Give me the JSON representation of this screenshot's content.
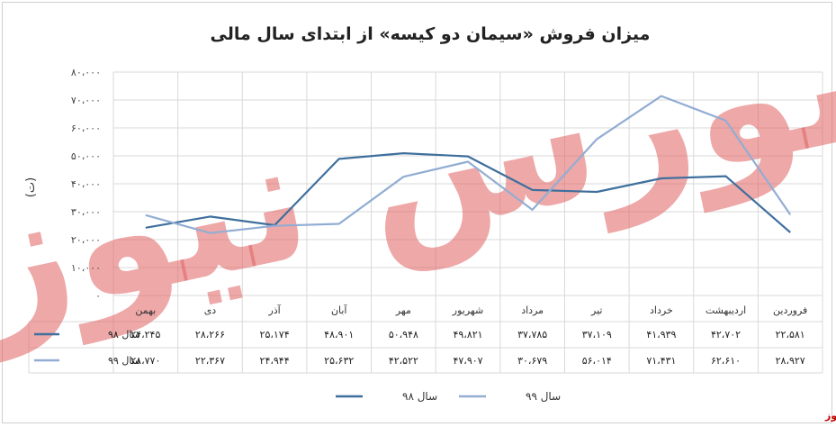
{
  "chart_data": {
    "type": "line",
    "title": "میزان فروش «سیمان دو کیسه» از ابتدای سال مالی",
    "ylabel": "(ت)",
    "ylim": [
      0,
      80000
    ],
    "y_ticks": [
      "۸۰،۰۰۰",
      "۷۰،۰۰۰",
      "۶۰،۰۰۰",
      "۵۰،۰۰۰",
      "۴۰،۰۰۰",
      "۳۰،۰۰۰",
      "۲۰،۰۰۰",
      "۱۰،۰۰۰",
      "۰"
    ],
    "y_tick_values": [
      80000,
      70000,
      60000,
      50000,
      40000,
      30000,
      20000,
      10000,
      0
    ],
    "categories": [
      "فروردین",
      "اردیبهشت",
      "خرداد",
      "تیر",
      "مرداد",
      "شهریور",
      "مهر",
      "آبان",
      "آذر",
      "دی",
      "بهمن"
    ],
    "series": [
      {
        "name": "سال ۹۸",
        "color": "#3f6f9d",
        "values": [
          22581,
          42702,
          41939,
          37109,
          37785,
          49821,
          50948,
          48901,
          25174,
          28266,
          24245
        ],
        "labels": [
          "۲۲،۵۸۱",
          "۴۲،۷۰۲",
          "۴۱،۹۳۹",
          "۳۷،۱۰۹",
          "۳۷،۷۸۵",
          "۴۹،۸۲۱",
          "۵۰،۹۴۸",
          "۴۸،۹۰۱",
          "۲۵،۱۷۴",
          "۲۸،۲۶۶",
          "۲۴،۲۴۵"
        ]
      },
      {
        "name": "سال ۹۹",
        "color": "#92add3",
        "values": [
          28927,
          62610,
          71431,
          56014,
          30679,
          47907,
          42522,
          25632,
          24944,
          22367,
          28770
        ],
        "labels": [
          "۲۸،۹۲۷",
          "۶۲،۶۱۰",
          "۷۱،۴۳۱",
          "۵۶،۰۱۴",
          "۳۰،۶۷۹",
          "۴۷،۹۰۷",
          "۴۲،۵۲۲",
          "۲۵،۶۳۲",
          "۲۴،۹۴۴",
          "۲۲،۳۶۷",
          "۲۸،۷۷۰"
        ]
      }
    ],
    "grid": true,
    "legend": "bottom",
    "data_table": true
  },
  "watermark": "بورس نیوز",
  "source_label": "بورس نیوز"
}
